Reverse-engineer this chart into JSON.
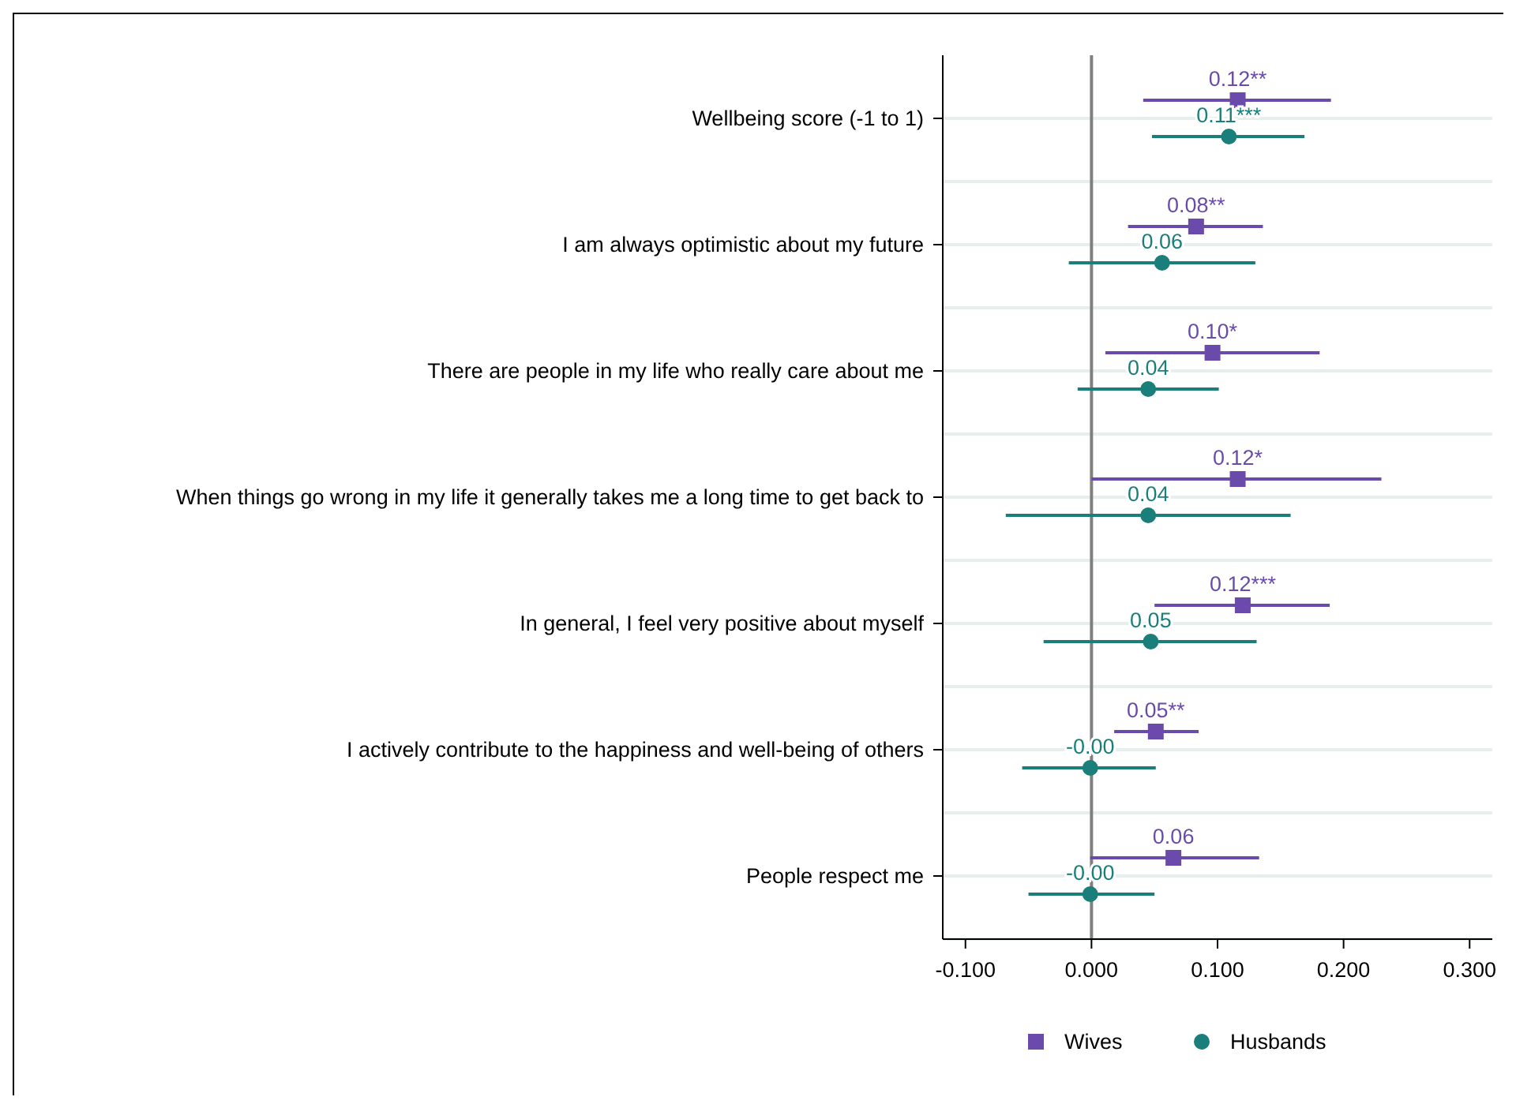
{
  "chart_data": {
    "type": "scatter",
    "orientation": "horizontal",
    "categories": [
      "Wellbeing score (-1 to 1)",
      "I am always optimistic about my future",
      "There are people in my life who really care about me",
      "When things go wrong in my life it generally takes me a long time to get back to",
      "In general, I feel very positive about myself",
      "I actively contribute to the happiness and well-being of others",
      "People respect me"
    ],
    "series": [
      {
        "name": "Wives",
        "color": "#6a4bab",
        "marker": "square",
        "values": [
          0.116,
          0.083,
          0.096,
          0.116,
          0.12,
          0.051,
          0.065
        ],
        "errors": [
          [
            0.041,
            0.19
          ],
          [
            0.029,
            0.136
          ],
          [
            0.011,
            0.181
          ],
          [
            0.0,
            0.23
          ],
          [
            0.05,
            0.189
          ],
          [
            0.018,
            0.085
          ],
          [
            -0.001,
            0.133
          ]
        ],
        "value_labels": [
          "0.12**",
          "0.08**",
          "0.10*",
          "0.12*",
          "0.12***",
          "0.05**",
          "0.06"
        ]
      },
      {
        "name": "Husbands",
        "color": "#1a7f7a",
        "marker": "circle",
        "values": [
          0.109,
          0.056,
          0.045,
          0.045,
          0.047,
          -0.001,
          -0.001
        ],
        "errors": [
          [
            0.048,
            0.169
          ],
          [
            -0.018,
            0.13
          ],
          [
            -0.011,
            0.101
          ],
          [
            -0.068,
            0.158
          ],
          [
            -0.038,
            0.131
          ],
          [
            -0.055,
            0.051
          ],
          [
            -0.05,
            0.05
          ]
        ],
        "value_labels": [
          "0.11***",
          "0.06",
          "0.04",
          "0.04",
          "0.05",
          "-0.00",
          "-0.00"
        ]
      }
    ],
    "xlim": [
      -0.118,
      0.318
    ],
    "xticks": [
      {
        "value": -0.1,
        "label": "-0.100"
      },
      {
        "value": 0,
        "label": "0.000"
      },
      {
        "value": 0.1,
        "label": "0.100"
      },
      {
        "value": 0.2,
        "label": "0.200"
      },
      {
        "value": 0.3,
        "label": "0.300"
      }
    ],
    "ref_lines": [
      {
        "axis": "x",
        "value": 0,
        "color": "#808080"
      }
    ],
    "grid": "y",
    "legend": "bottom"
  }
}
